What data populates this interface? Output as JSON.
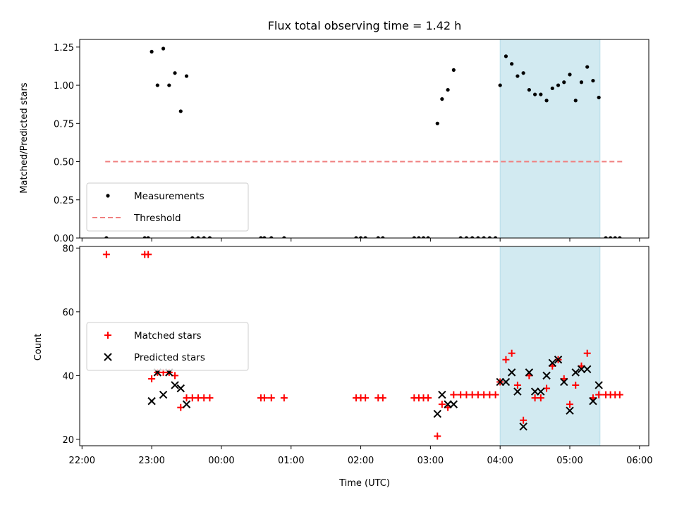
{
  "chart_data": [
    {
      "type": "scatter",
      "title": "Flux total observing time = 1.42 h",
      "xlabel": "",
      "ylabel": "Matched/Predicted stars",
      "xlim": [
        "21:58",
        "06:08"
      ],
      "ylim": [
        0,
        1.3
      ],
      "y_ticks": [
        "0.00",
        "0.25",
        "0.50",
        "0.75",
        "1.00",
        "1.25"
      ],
      "highlight_span": {
        "from": "04:00",
        "to": "05:26",
        "color": "#add8e6"
      },
      "legend": {
        "position": "lower-left",
        "entries": [
          {
            "label": "Measurements",
            "marker": "dot",
            "color": "#000000"
          },
          {
            "label": "Threshold",
            "marker": "dashed-line",
            "color": "#f08080"
          }
        ]
      },
      "threshold": {
        "value": 0.5,
        "x_from": "22:20",
        "x_to": "05:46",
        "color": "#f08080"
      },
      "series": [
        {
          "name": "Measurements",
          "color": "#000000",
          "points": [
            [
              "22:21",
              0
            ],
            [
              "22:54",
              0
            ],
            [
              "22:57",
              0
            ],
            [
              "23:00",
              1.22
            ],
            [
              "23:05",
              1.0
            ],
            [
              "23:10",
              1.24
            ],
            [
              "23:15",
              1.0
            ],
            [
              "23:20",
              1.08
            ],
            [
              "23:25",
              0.83
            ],
            [
              "23:30",
              1.06
            ],
            [
              "23:35",
              0
            ],
            [
              "23:40",
              0
            ],
            [
              "23:45",
              0
            ],
            [
              "23:50",
              0
            ],
            [
              "00:34",
              0
            ],
            [
              "00:37",
              0
            ],
            [
              "00:43",
              0
            ],
            [
              "00:54",
              0
            ],
            [
              "01:56",
              0
            ],
            [
              "02:00",
              0
            ],
            [
              "02:04",
              0
            ],
            [
              "02:15",
              0
            ],
            [
              "02:19",
              0
            ],
            [
              "02:46",
              0
            ],
            [
              "02:50",
              0
            ],
            [
              "02:54",
              0
            ],
            [
              "02:58",
              0
            ],
            [
              "03:06",
              0.75
            ],
            [
              "03:10",
              0.91
            ],
            [
              "03:15",
              0.97
            ],
            [
              "03:20",
              1.1
            ],
            [
              "03:26",
              0
            ],
            [
              "03:31",
              0
            ],
            [
              "03:36",
              0
            ],
            [
              "03:41",
              0
            ],
            [
              "03:46",
              0
            ],
            [
              "03:51",
              0
            ],
            [
              "03:56",
              0
            ],
            [
              "04:00",
              1.0
            ],
            [
              "04:05",
              1.19
            ],
            [
              "04:10",
              1.14
            ],
            [
              "04:15",
              1.06
            ],
            [
              "04:20",
              1.08
            ],
            [
              "04:25",
              0.97
            ],
            [
              "04:30",
              0.94
            ],
            [
              "04:35",
              0.94
            ],
            [
              "04:40",
              0.9
            ],
            [
              "04:45",
              0.98
            ],
            [
              "04:50",
              1.0
            ],
            [
              "04:55",
              1.02
            ],
            [
              "05:00",
              1.07
            ],
            [
              "05:05",
              0.9
            ],
            [
              "05:10",
              1.02
            ],
            [
              "05:15",
              1.12
            ],
            [
              "05:20",
              1.03
            ],
            [
              "05:25",
              0.92
            ],
            [
              "05:31",
              0
            ],
            [
              "05:35",
              0
            ],
            [
              "05:39",
              0
            ],
            [
              "05:43",
              0
            ]
          ]
        }
      ]
    },
    {
      "type": "scatter",
      "title": "",
      "xlabel": "Time (UTC)",
      "ylabel": "Count",
      "xlim": [
        "21:58",
        "06:08"
      ],
      "ylim": [
        18,
        80.5
      ],
      "y_ticks": [
        "20",
        "40",
        "60",
        "80"
      ],
      "x_ticks": [
        "22:00",
        "23:00",
        "00:00",
        "01:00",
        "02:00",
        "03:00",
        "04:00",
        "05:00",
        "06:00"
      ],
      "highlight_span": {
        "from": "04:00",
        "to": "05:26",
        "color": "#add8e6"
      },
      "legend": {
        "position": "center-left",
        "entries": [
          {
            "label": "Matched stars",
            "marker": "plus",
            "color": "#ff0000"
          },
          {
            "label": "Predicted stars",
            "marker": "x",
            "color": "#000000"
          }
        ]
      },
      "series": [
        {
          "name": "Matched stars",
          "color": "#ff0000",
          "points": [
            [
              "22:21",
              78
            ],
            [
              "22:54",
              78
            ],
            [
              "22:57",
              78
            ],
            [
              "23:00",
              39
            ],
            [
              "23:05",
              41
            ],
            [
              "23:10",
              41
            ],
            [
              "23:15",
              41
            ],
            [
              "23:20",
              40
            ],
            [
              "23:25",
              30
            ],
            [
              "23:30",
              33
            ],
            [
              "23:35",
              33
            ],
            [
              "23:40",
              33
            ],
            [
              "23:45",
              33
            ],
            [
              "23:50",
              33
            ],
            [
              "00:34",
              33
            ],
            [
              "00:37",
              33
            ],
            [
              "00:43",
              33
            ],
            [
              "00:54",
              33
            ],
            [
              "01:56",
              33
            ],
            [
              "02:00",
              33
            ],
            [
              "02:04",
              33
            ],
            [
              "02:15",
              33
            ],
            [
              "02:19",
              33
            ],
            [
              "02:46",
              33
            ],
            [
              "02:50",
              33
            ],
            [
              "02:54",
              33
            ],
            [
              "02:58",
              33
            ],
            [
              "03:06",
              21
            ],
            [
              "03:10",
              31
            ],
            [
              "03:15",
              30
            ],
            [
              "03:20",
              34
            ],
            [
              "03:26",
              34
            ],
            [
              "03:31",
              34
            ],
            [
              "03:36",
              34
            ],
            [
              "03:41",
              34
            ],
            [
              "03:46",
              34
            ],
            [
              "03:51",
              34
            ],
            [
              "03:56",
              34
            ],
            [
              "04:00",
              38
            ],
            [
              "04:05",
              45
            ],
            [
              "04:10",
              47
            ],
            [
              "04:15",
              37
            ],
            [
              "04:20",
              26
            ],
            [
              "04:25",
              40
            ],
            [
              "04:30",
              33
            ],
            [
              "04:35",
              33
            ],
            [
              "04:40",
              36
            ],
            [
              "04:45",
              43
            ],
            [
              "04:50",
              45
            ],
            [
              "04:55",
              39
            ],
            [
              "05:00",
              31
            ],
            [
              "05:05",
              37
            ],
            [
              "05:10",
              43
            ],
            [
              "05:15",
              47
            ],
            [
              "05:20",
              33
            ],
            [
              "05:25",
              34
            ],
            [
              "05:31",
              34
            ],
            [
              "05:35",
              34
            ],
            [
              "05:39",
              34
            ],
            [
              "05:43",
              34
            ]
          ]
        },
        {
          "name": "Predicted stars",
          "color": "#000000",
          "points": [
            [
              "23:00",
              32
            ],
            [
              "23:05",
              41
            ],
            [
              "23:10",
              34
            ],
            [
              "23:15",
              41
            ],
            [
              "23:20",
              37
            ],
            [
              "23:25",
              36
            ],
            [
              "23:30",
              31
            ],
            [
              "03:06",
              28
            ],
            [
              "03:10",
              34
            ],
            [
              "03:15",
              31
            ],
            [
              "03:20",
              31
            ],
            [
              "04:00",
              38
            ],
            [
              "04:05",
              38
            ],
            [
              "04:10",
              41
            ],
            [
              "04:15",
              35
            ],
            [
              "04:20",
              24
            ],
            [
              "04:25",
              41
            ],
            [
              "04:30",
              35
            ],
            [
              "04:35",
              35
            ],
            [
              "04:40",
              40
            ],
            [
              "04:45",
              44
            ],
            [
              "04:50",
              45
            ],
            [
              "04:55",
              38
            ],
            [
              "05:00",
              29
            ],
            [
              "05:05",
              41
            ],
            [
              "05:10",
              42
            ],
            [
              "05:15",
              42
            ],
            [
              "05:20",
              32
            ],
            [
              "05:25",
              37
            ]
          ]
        }
      ]
    }
  ]
}
